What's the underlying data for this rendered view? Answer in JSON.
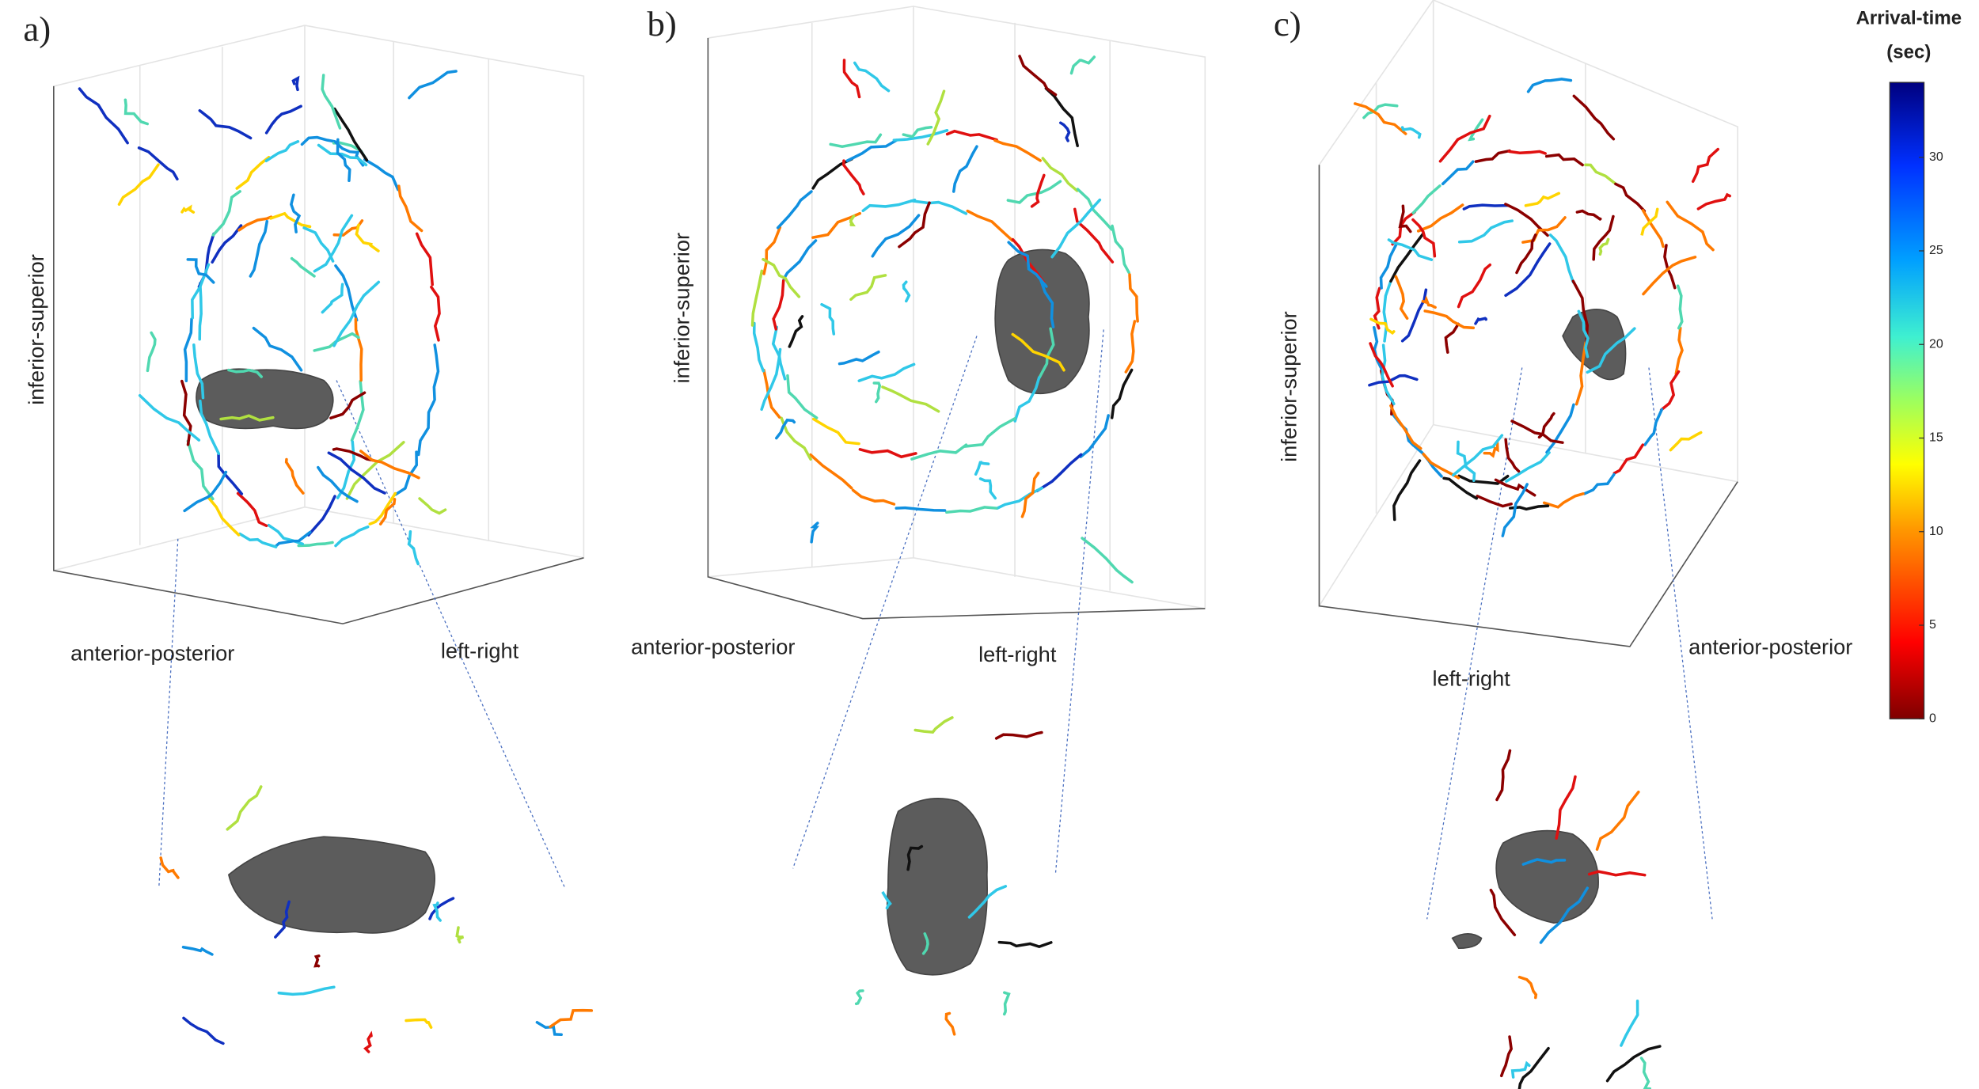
{
  "panels": [
    {
      "label": "a)",
      "axes": {
        "vertical": "inferior-superior",
        "depth": "anterior-posterior",
        "horizontal": "left-right"
      }
    },
    {
      "label": "b)",
      "axes": {
        "vertical": "inferior-superior",
        "depth": "anterior-posterior",
        "horizontal": "left-right"
      }
    },
    {
      "label": "c)",
      "axes": {
        "vertical": "inferior-superior",
        "horizontal": "left-right",
        "depth": "anterior-posterior"
      }
    }
  ],
  "colorbar": {
    "title": [
      "Arrival-time",
      "(sec)"
    ],
    "range": [
      0,
      34
    ],
    "ticks": [
      0,
      5,
      10,
      15,
      20,
      25,
      30
    ]
  }
}
